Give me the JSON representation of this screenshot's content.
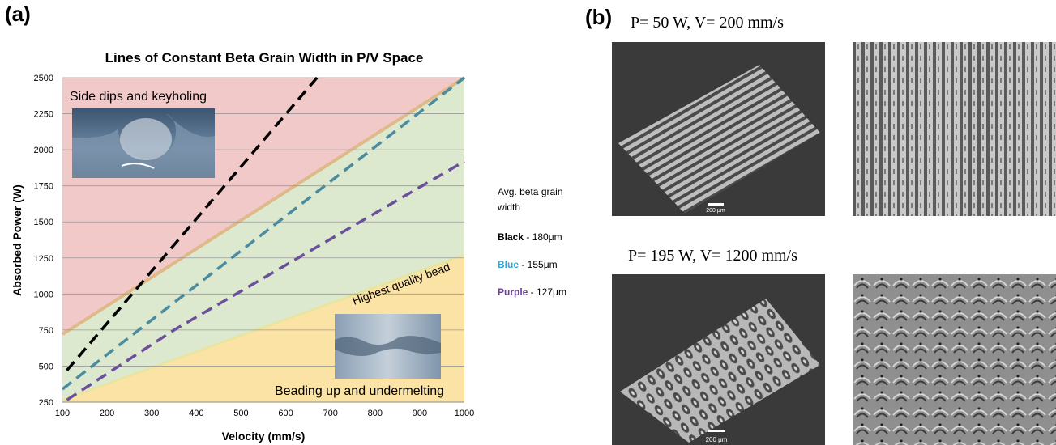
{
  "panel_a": {
    "label": "(a)",
    "region_labels": {
      "top": "Side dips and keyholing",
      "middle": "Highest quality bead",
      "bottom": "Beading up and undermelting"
    },
    "region_colors": {
      "top": "#f1c9c8",
      "middle": "#dde9cf",
      "bottom": "#fbe3a6",
      "top_text": "#c0392b",
      "middle_text": "#4a9a3a",
      "bottom_text": "#e67e22"
    },
    "legend": {
      "header": "Avg. beta grain width",
      "items": [
        {
          "name": "Black",
          "value": " - 180μm",
          "color": "#000000"
        },
        {
          "name": "Blue",
          "value": " - 155μm",
          "color": "#2aa7e0"
        },
        {
          "name": "Purple",
          "value": " - 127μm",
          "color": "#6b3fa0"
        }
      ]
    }
  },
  "panel_b": {
    "label": "(b)",
    "top_condition": "P= 50 W, V= 200 mm/s",
    "bottom_condition": "P= 195 W, V= 1200 mm/s",
    "scale_bar_top": "200 μm",
    "scale_bar_bottom": "200 μm"
  },
  "chart_data": {
    "type": "line",
    "title": "Lines of Constant Beta Grain Width in P/V Space",
    "xlabel": "Velocity (mm/s)",
    "ylabel": "Absorbed Power (W)",
    "xlim": [
      100,
      1000
    ],
    "ylim": [
      250,
      2500
    ],
    "xticks": [
      100,
      200,
      300,
      400,
      500,
      600,
      700,
      800,
      900,
      1000
    ],
    "yticks": [
      250,
      500,
      750,
      1000,
      1250,
      1500,
      1750,
      2000,
      2250,
      2500
    ],
    "grid": "horizontal",
    "series": [
      {
        "name": "Black",
        "color": "#000000",
        "x": [
          110,
          670
        ],
        "y": [
          470,
          2500
        ]
      },
      {
        "name": "Blue",
        "color": "#4a8ba0",
        "x": [
          100,
          1000
        ],
        "y": [
          340,
          2500
        ]
      },
      {
        "name": "Purple",
        "color": "#6b4f9a",
        "x": [
          110,
          350,
          1000
        ],
        "y": [
          265,
          750,
          1920
        ]
      }
    ],
    "boundaries": [
      {
        "between": "top-middle",
        "x": [
          100,
          1000
        ],
        "y": [
          720,
          2500
        ]
      },
      {
        "between": "middle-bottom",
        "x": [
          100,
          1000
        ],
        "y": [
          265,
          1270
        ]
      }
    ]
  }
}
